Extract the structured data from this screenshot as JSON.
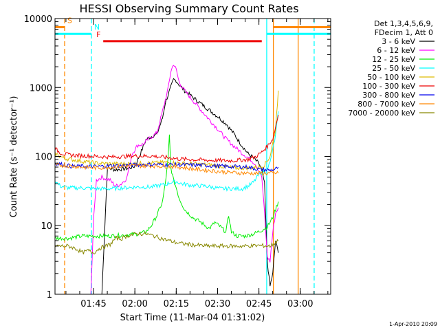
{
  "chart_data": {
    "type": "line",
    "title": "HESSI Observing Summary Count Rates",
    "xlabel": "Start Time (11-Mar-04 01:31:02)",
    "ylabel": "Count Rate (s⁻¹ detector⁻¹)",
    "yscale": "log",
    "ylim": [
      1,
      10000
    ],
    "xlim_minutes_after_start": [
      0,
      100
    ],
    "xticks": [
      {
        "label": "01:45",
        "minute": 13.97
      },
      {
        "label": "02:00",
        "minute": 28.97
      },
      {
        "label": "02:15",
        "minute": 43.97
      },
      {
        "label": "02:30",
        "minute": 58.97
      },
      {
        "label": "02:45",
        "minute": 73.97
      },
      {
        "label": "03:00",
        "minute": 88.97
      }
    ],
    "yticks": [
      {
        "label": "1",
        "value": 1
      },
      {
        "label": "10",
        "value": 10
      },
      {
        "label": "100",
        "value": 100
      },
      {
        "label": "1000",
        "value": 1000
      },
      {
        "label": "10000",
        "value": 10000
      }
    ],
    "legend": {
      "header": [
        "Det 1,3,4,5,6,9,",
        "FDecim 1, Att 0"
      ],
      "placement": "right"
    },
    "series": [
      {
        "name": "3 - 6 keV",
        "color": "#000000",
        "points": [
          [
            17,
            1
          ],
          [
            19,
            68
          ],
          [
            22,
            64
          ],
          [
            25,
            66
          ],
          [
            27,
            68
          ],
          [
            29,
            72
          ],
          [
            31,
            110
          ],
          [
            33,
            175
          ],
          [
            35,
            195
          ],
          [
            37,
            210
          ],
          [
            39,
            360
          ],
          [
            40,
            600
          ],
          [
            42,
            1000
          ],
          [
            43,
            1300
          ],
          [
            44,
            1250
          ],
          [
            45,
            1100
          ],
          [
            47,
            900
          ],
          [
            50,
            720
          ],
          [
            53,
            580
          ],
          [
            56,
            470
          ],
          [
            59,
            380
          ],
          [
            62,
            300
          ],
          [
            65,
            210
          ],
          [
            68,
            140
          ],
          [
            70,
            110
          ],
          [
            72,
            95
          ],
          [
            74,
            78
          ],
          [
            75,
            65
          ],
          [
            76,
            40
          ],
          [
            77,
            3
          ],
          [
            78,
            1.3
          ],
          [
            79,
            2
          ],
          [
            80,
            6
          ],
          [
            81,
            4
          ]
        ]
      },
      {
        "name": "6 - 12 keV",
        "color": "#ff00ff",
        "points": [
          [
            13,
            1
          ],
          [
            14,
            12
          ],
          [
            15,
            45
          ],
          [
            17,
            50
          ],
          [
            20,
            45
          ],
          [
            22,
            37
          ],
          [
            24,
            40
          ],
          [
            26,
            48
          ],
          [
            28,
            110
          ],
          [
            30,
            145
          ],
          [
            32,
            150
          ],
          [
            34,
            180
          ],
          [
            37,
            220
          ],
          [
            39,
            450
          ],
          [
            41,
            950
          ],
          [
            42,
            1700
          ],
          [
            43,
            2200
          ],
          [
            44,
            1800
          ],
          [
            45,
            1200
          ],
          [
            47,
            900
          ],
          [
            50,
            650
          ],
          [
            53,
            470
          ],
          [
            56,
            340
          ],
          [
            59,
            250
          ],
          [
            62,
            180
          ],
          [
            65,
            140
          ],
          [
            68,
            110
          ],
          [
            71,
            90
          ],
          [
            73,
            75
          ],
          [
            75,
            50
          ],
          [
            76,
            15
          ],
          [
            77,
            3.5
          ],
          [
            78,
            3
          ],
          [
            79,
            8
          ],
          [
            80,
            15
          ],
          [
            81,
            18
          ]
        ]
      },
      {
        "name": "12 - 25 keV",
        "color": "#00ee00",
        "points": [
          [
            0,
            6.5
          ],
          [
            5,
            6.5
          ],
          [
            10,
            7
          ],
          [
            15,
            7
          ],
          [
            20,
            7
          ],
          [
            25,
            7.2
          ],
          [
            30,
            7.5
          ],
          [
            33,
            8
          ],
          [
            35,
            10
          ],
          [
            37,
            14
          ],
          [
            39,
            22
          ],
          [
            40,
            40
          ],
          [
            41,
            90
          ],
          [
            41.5,
            200
          ],
          [
            42,
            70
          ],
          [
            43,
            45
          ],
          [
            44,
            35
          ],
          [
            45,
            25
          ],
          [
            47,
            17
          ],
          [
            50,
            13
          ],
          [
            53,
            11
          ],
          [
            56,
            9
          ],
          [
            58,
            11
          ],
          [
            60,
            9.5
          ],
          [
            62,
            8
          ],
          [
            63,
            14
          ],
          [
            64,
            8
          ],
          [
            66,
            7
          ],
          [
            69,
            7
          ],
          [
            72,
            7.5
          ],
          [
            75,
            8.5
          ],
          [
            77,
            9.5
          ],
          [
            79,
            13
          ],
          [
            80,
            17
          ],
          [
            81,
            22
          ]
        ]
      },
      {
        "name": "25 - 50 keV",
        "color": "#00ffff",
        "points": [
          [
            0,
            44
          ],
          [
            2,
            37
          ],
          [
            5,
            35
          ],
          [
            10,
            35
          ],
          [
            15,
            34
          ],
          [
            20,
            34
          ],
          [
            25,
            35
          ],
          [
            30,
            36
          ],
          [
            35,
            36
          ],
          [
            38,
            38
          ],
          [
            40,
            39
          ],
          [
            42,
            42
          ],
          [
            44,
            43
          ],
          [
            46,
            40
          ],
          [
            50,
            38
          ],
          [
            55,
            37
          ],
          [
            60,
            34
          ],
          [
            65,
            34
          ],
          [
            68,
            34
          ],
          [
            70,
            37
          ],
          [
            72,
            42
          ],
          [
            74,
            55
          ],
          [
            76,
            60
          ],
          [
            78,
            80
          ],
          [
            80,
            200
          ],
          [
            81,
            450
          ]
        ]
      },
      {
        "name": "50 - 100 keV",
        "color": "#ddbb00",
        "points": [
          [
            0,
            110
          ],
          [
            3,
            95
          ],
          [
            6,
            90
          ],
          [
            10,
            85
          ],
          [
            15,
            80
          ],
          [
            20,
            78
          ],
          [
            25,
            78
          ],
          [
            30,
            79
          ],
          [
            35,
            80
          ],
          [
            40,
            82
          ],
          [
            45,
            80
          ],
          [
            50,
            78
          ],
          [
            55,
            76
          ],
          [
            60,
            72
          ],
          [
            65,
            68
          ],
          [
            70,
            68
          ],
          [
            74,
            70
          ],
          [
            76,
            75
          ],
          [
            78,
            100
          ],
          [
            80,
            250
          ],
          [
            81,
            900
          ]
        ]
      },
      {
        "name": "100 - 300 keV",
        "color": "#ee0000",
        "points": [
          [
            0,
            130
          ],
          [
            2,
            112
          ],
          [
            5,
            105
          ],
          [
            10,
            102
          ],
          [
            15,
            100
          ],
          [
            20,
            98
          ],
          [
            25,
            100
          ],
          [
            30,
            102
          ],
          [
            35,
            101
          ],
          [
            40,
            97
          ],
          [
            45,
            92
          ],
          [
            50,
            90
          ],
          [
            55,
            88
          ],
          [
            60,
            87
          ],
          [
            65,
            87
          ],
          [
            70,
            90
          ],
          [
            73,
            100
          ],
          [
            75,
            115
          ],
          [
            77,
            140
          ],
          [
            79,
            180
          ],
          [
            81,
            400
          ]
        ]
      },
      {
        "name": "300 - 800 keV",
        "color": "#0000ee",
        "points": [
          [
            0,
            80
          ],
          [
            3,
            76
          ],
          [
            6,
            72
          ],
          [
            10,
            72
          ],
          [
            15,
            71
          ],
          [
            20,
            73
          ],
          [
            25,
            74
          ],
          [
            30,
            76
          ],
          [
            35,
            76
          ],
          [
            40,
            76
          ],
          [
            45,
            76
          ],
          [
            50,
            75
          ],
          [
            55,
            74
          ],
          [
            60,
            72
          ],
          [
            65,
            71
          ],
          [
            70,
            70
          ],
          [
            74,
            65
          ],
          [
            76,
            64
          ],
          [
            78,
            63
          ],
          [
            80,
            65
          ],
          [
            81,
            70
          ]
        ]
      },
      {
        "name": "800 - 7000 keV",
        "color": "#ff8800",
        "points": [
          [
            0,
            75
          ],
          [
            5,
            73
          ],
          [
            10,
            70
          ],
          [
            15,
            68
          ],
          [
            20,
            70
          ],
          [
            25,
            72
          ],
          [
            30,
            73
          ],
          [
            35,
            73
          ],
          [
            40,
            72
          ],
          [
            45,
            70
          ],
          [
            50,
            66
          ],
          [
            55,
            63
          ],
          [
            60,
            60
          ],
          [
            65,
            58
          ],
          [
            70,
            57
          ],
          [
            75,
            57
          ],
          [
            81,
            57
          ]
        ]
      },
      {
        "name": "7000 - 20000 keV",
        "color": "#888800",
        "points": [
          [
            0,
            5
          ],
          [
            5,
            5
          ],
          [
            8,
            4.5
          ],
          [
            10,
            4
          ],
          [
            12,
            4.3
          ],
          [
            14,
            4
          ],
          [
            16,
            4.6
          ],
          [
            18,
            4.9
          ],
          [
            20,
            5.3
          ],
          [
            22,
            6.5
          ],
          [
            24,
            6.4
          ],
          [
            26,
            7
          ],
          [
            28,
            7.3
          ],
          [
            30,
            7.6
          ],
          [
            33,
            7.5
          ],
          [
            36,
            7
          ],
          [
            40,
            6.2
          ],
          [
            45,
            5.5
          ],
          [
            50,
            5.2
          ],
          [
            55,
            5
          ],
          [
            60,
            5
          ],
          [
            65,
            5
          ],
          [
            70,
            5
          ],
          [
            74,
            5.1
          ],
          [
            78,
            5
          ],
          [
            81,
            6
          ]
        ]
      }
    ],
    "vertical_markers": [
      {
        "minute": 3.5,
        "color": "#ff8800",
        "style": "dashed"
      },
      {
        "minute": 13.2,
        "color": "#00ffff",
        "style": "dashed"
      },
      {
        "minute": 76.8,
        "color": "#00ffff",
        "style": "solid"
      },
      {
        "minute": 79.2,
        "color": "#ff8800",
        "style": "solid"
      },
      {
        "minute": 88.2,
        "color": "#ff8800",
        "style": "solid"
      },
      {
        "minute": 94.0,
        "color": "#00ffff",
        "style": "dashed"
      }
    ],
    "flags": [
      {
        "label": "S",
        "color": "#ff8800",
        "level": 7500,
        "segments": [
          [
            0,
            3.5
          ],
          [
            79.2,
            100
          ]
        ]
      },
      {
        "label": "N",
        "color": "#00ffff",
        "level": 6000,
        "segments": [
          [
            0,
            13.2
          ],
          [
            76.8,
            100
          ]
        ]
      },
      {
        "label": "F",
        "color": "#ee0000",
        "level": 4700,
        "segments": [
          [
            17.5,
            75
          ]
        ]
      }
    ],
    "footer_date": "1-Apr-2010 20:09"
  }
}
